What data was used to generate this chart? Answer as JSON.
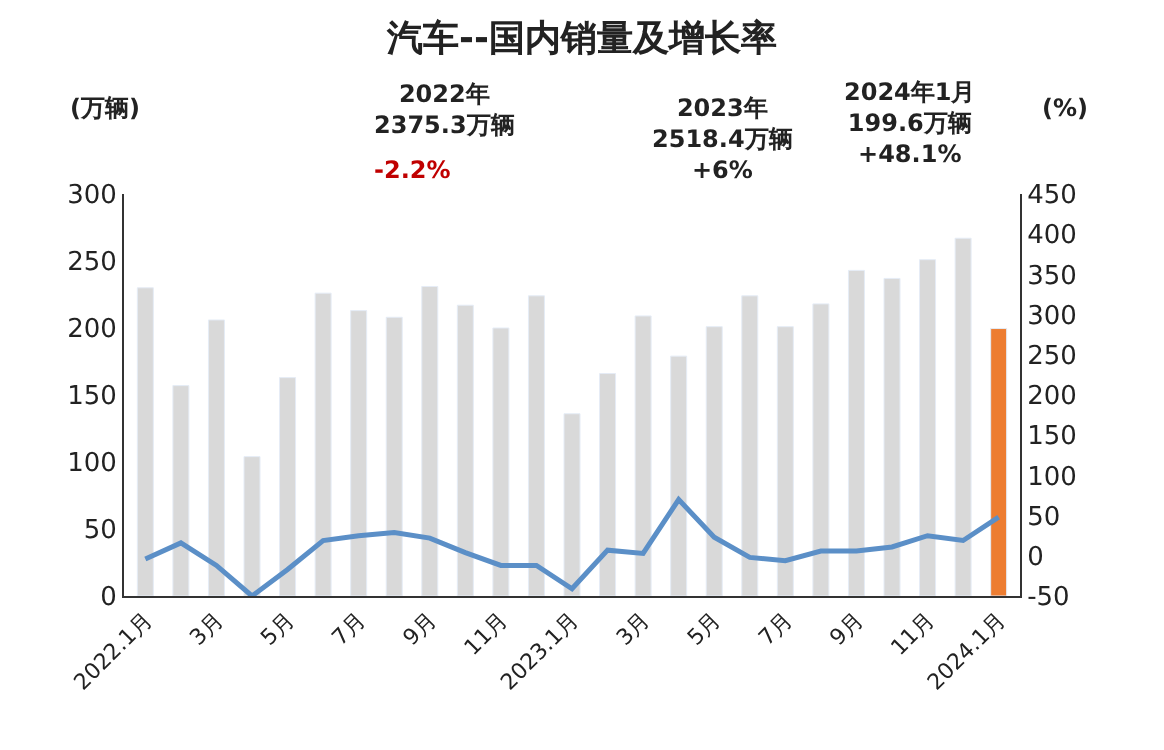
{
  "chart_data": {
    "type": "bar",
    "title": "汽车--国内销量及增长率",
    "ylabel": "(万辆)",
    "y2label": "(%)",
    "categories": [
      "2022.1月",
      null,
      "3月",
      null,
      "5月",
      null,
      "7月",
      null,
      "9月",
      null,
      "11月",
      null,
      "2023.1月",
      null,
      "3月",
      null,
      "5月",
      null,
      "7月",
      null,
      "9月",
      null,
      "11月",
      null,
      "2024.1月"
    ],
    "series": [
      {
        "color": "#d9d9d9",
        "colors": [
          "#d9d9d9",
          "#d9d9d9",
          "#d9d9d9",
          "#d9d9d9",
          "#d9d9d9",
          "#d9d9d9",
          "#d9d9d9",
          "#d9d9d9",
          "#d9d9d9",
          "#d9d9d9",
          "#d9d9d9",
          "#d9d9d9",
          "#d9d9d9",
          "#d9d9d9",
          "#d9d9d9",
          "#d9d9d9",
          "#d9d9d9",
          "#d9d9d9",
          "#d9d9d9",
          "#d9d9d9",
          "#d9d9d9",
          "#d9d9d9",
          "#d9d9d9",
          "#d9d9d9",
          "#ed7d31"
        ],
        "values": [
          230,
          157,
          206,
          104,
          163,
          226,
          213,
          208,
          231,
          217,
          200,
          224,
          136,
          166,
          209,
          179,
          201,
          224,
          201,
          218,
          243,
          237,
          251,
          267,
          199.6
        ]
      },
      {
        "type": "line",
        "axis": "y2",
        "color": "#5b8fc7",
        "values": [
          -4,
          16,
          -12,
          -50,
          -17,
          19,
          25,
          29,
          22,
          4,
          -12,
          -12,
          -41,
          7,
          3,
          70,
          23,
          -2,
          -6,
          6,
          6,
          11,
          25,
          19,
          48.1
        ]
      }
    ],
    "ylim": [
      0,
      300
    ],
    "yticks": [
      0,
      50,
      100,
      150,
      200,
      250,
      300
    ],
    "y2lim": [
      -50,
      450
    ],
    "y2ticks": [
      -50,
      0,
      50,
      100,
      150,
      200,
      250,
      300,
      350,
      400,
      450
    ],
    "annotations": [
      "2022年\n2375.3万辆",
      "-2.2%",
      "2023年\n2518.4万辆\n+6%",
      "2024年1月\n199.6万辆\n+48.1%"
    ],
    "legend": false,
    "marker": "none",
    "line_style": "solid"
  }
}
